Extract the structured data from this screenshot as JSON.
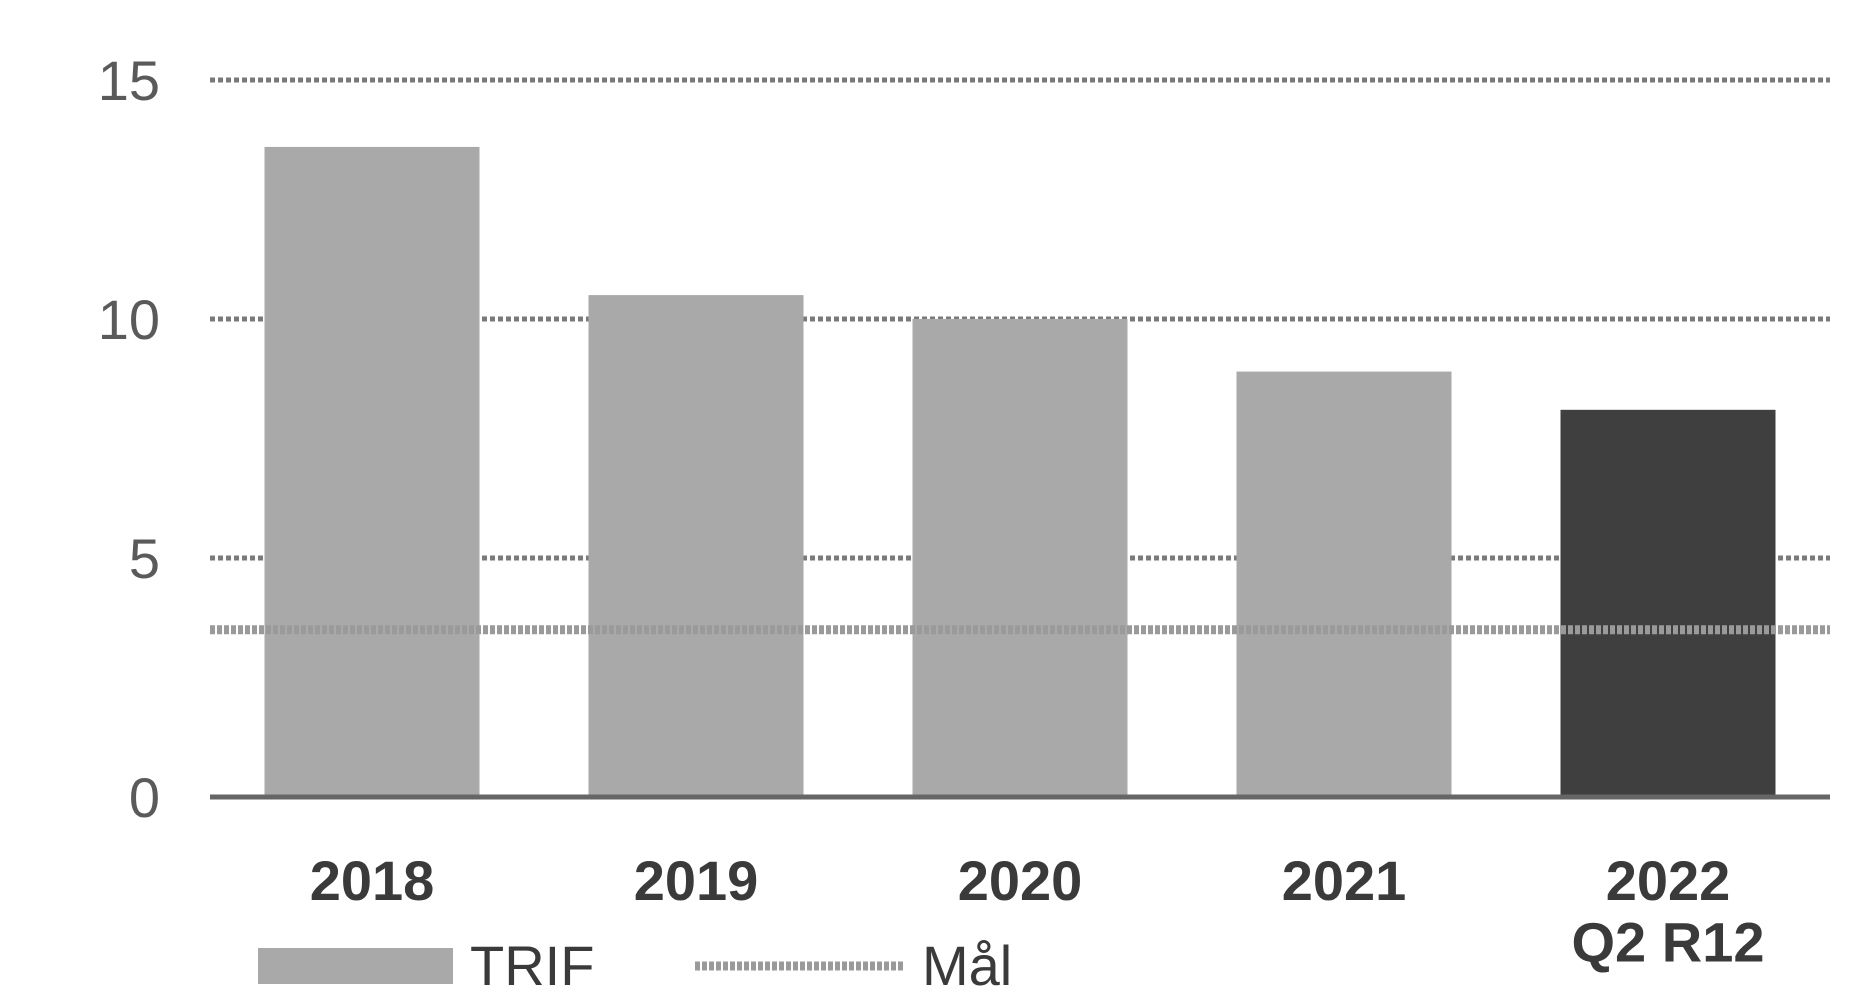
{
  "chart_data": {
    "type": "bar",
    "categories": [
      "2018",
      "2019",
      "2020",
      "2021",
      "2022\nQ2 R12"
    ],
    "series": [
      {
        "name": "TRIF",
        "values": [
          13.6,
          10.5,
          10.0,
          8.9,
          8.1
        ]
      },
      {
        "name": "Mål",
        "type": "line",
        "values": [
          3.5,
          3.5,
          3.5,
          3.5,
          3.5
        ]
      }
    ],
    "yticks": [
      0,
      5,
      10,
      15
    ],
    "ylim": [
      0,
      15
    ],
    "grid": true,
    "legend_position": "bottom-left",
    "colors": {
      "bar": "#a9a9a9",
      "bar_highlight": "#3f3f3f",
      "target_line": "#9a9a9a",
      "grid": "#7a7a7a",
      "axis": "#666666"
    }
  }
}
